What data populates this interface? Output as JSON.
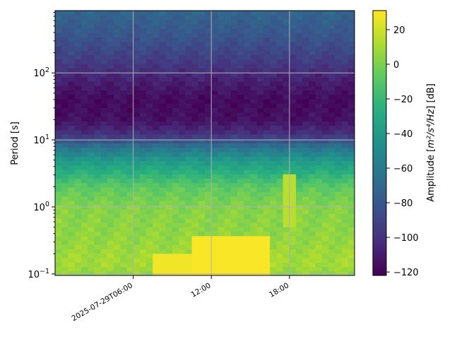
{
  "chart_data": {
    "type": "heatmap",
    "title": "",
    "xlabel": "",
    "ylabel": "Period [s]",
    "yscale": "log",
    "ylim": [
      0.095,
      850
    ],
    "y_ticks": [
      {
        "value": 0.1,
        "base": "10",
        "exp": "−1"
      },
      {
        "value": 1,
        "base": "10",
        "exp": "0"
      },
      {
        "value": 10,
        "base": "10",
        "exp": "1"
      },
      {
        "value": 100,
        "base": "10",
        "exp": "2"
      }
    ],
    "x_range_hours": [
      0,
      23
    ],
    "x_ticks": [
      {
        "hour": 6,
        "label": "2025-07-29T06:00"
      },
      {
        "hour": 12,
        "label": "12:00"
      },
      {
        "hour": 18,
        "label": "18:00"
      }
    ],
    "grid": true,
    "colormap": "viridis",
    "colorbar": {
      "label_prefix": "Amplitude [",
      "label_math": "m²/s⁴/Hz",
      "label_suffix": "] [dB]",
      "range": [
        -122,
        31
      ],
      "ticks": [
        "20",
        "0",
        "−20",
        "−40",
        "−60",
        "−80",
        "−100",
        "−120"
      ],
      "tick_values": [
        20,
        0,
        -20,
        -40,
        -60,
        -80,
        -100,
        -120
      ]
    },
    "amplitude_profile_db": [
      {
        "period": 0.1,
        "db": 5
      },
      {
        "period": 0.15,
        "db": 10
      },
      {
        "period": 0.3,
        "db": 6
      },
      {
        "period": 1,
        "db": 2
      },
      {
        "period": 2,
        "db": -8
      },
      {
        "period": 5,
        "db": -40
      },
      {
        "period": 8,
        "db": -65
      },
      {
        "period": 12,
        "db": -100
      },
      {
        "period": 20,
        "db": -115
      },
      {
        "period": 40,
        "db": -118
      },
      {
        "period": 80,
        "db": -108
      },
      {
        "period": 150,
        "db": -95
      },
      {
        "period": 400,
        "db": -80
      },
      {
        "period": 850,
        "db": -72
      }
    ],
    "hot_spots": [
      {
        "hour_from": 7.5,
        "hour_to": 10.5,
        "period_from": 0.1,
        "period_to": 0.2,
        "db": 28
      },
      {
        "hour_from": 10.5,
        "hour_to": 16.5,
        "period_from": 0.1,
        "period_to": 0.35,
        "db": 30
      },
      {
        "hour_from": 17.5,
        "hour_to": 18.5,
        "period_from": 0.5,
        "period_to": 3,
        "db": 15
      }
    ]
  }
}
